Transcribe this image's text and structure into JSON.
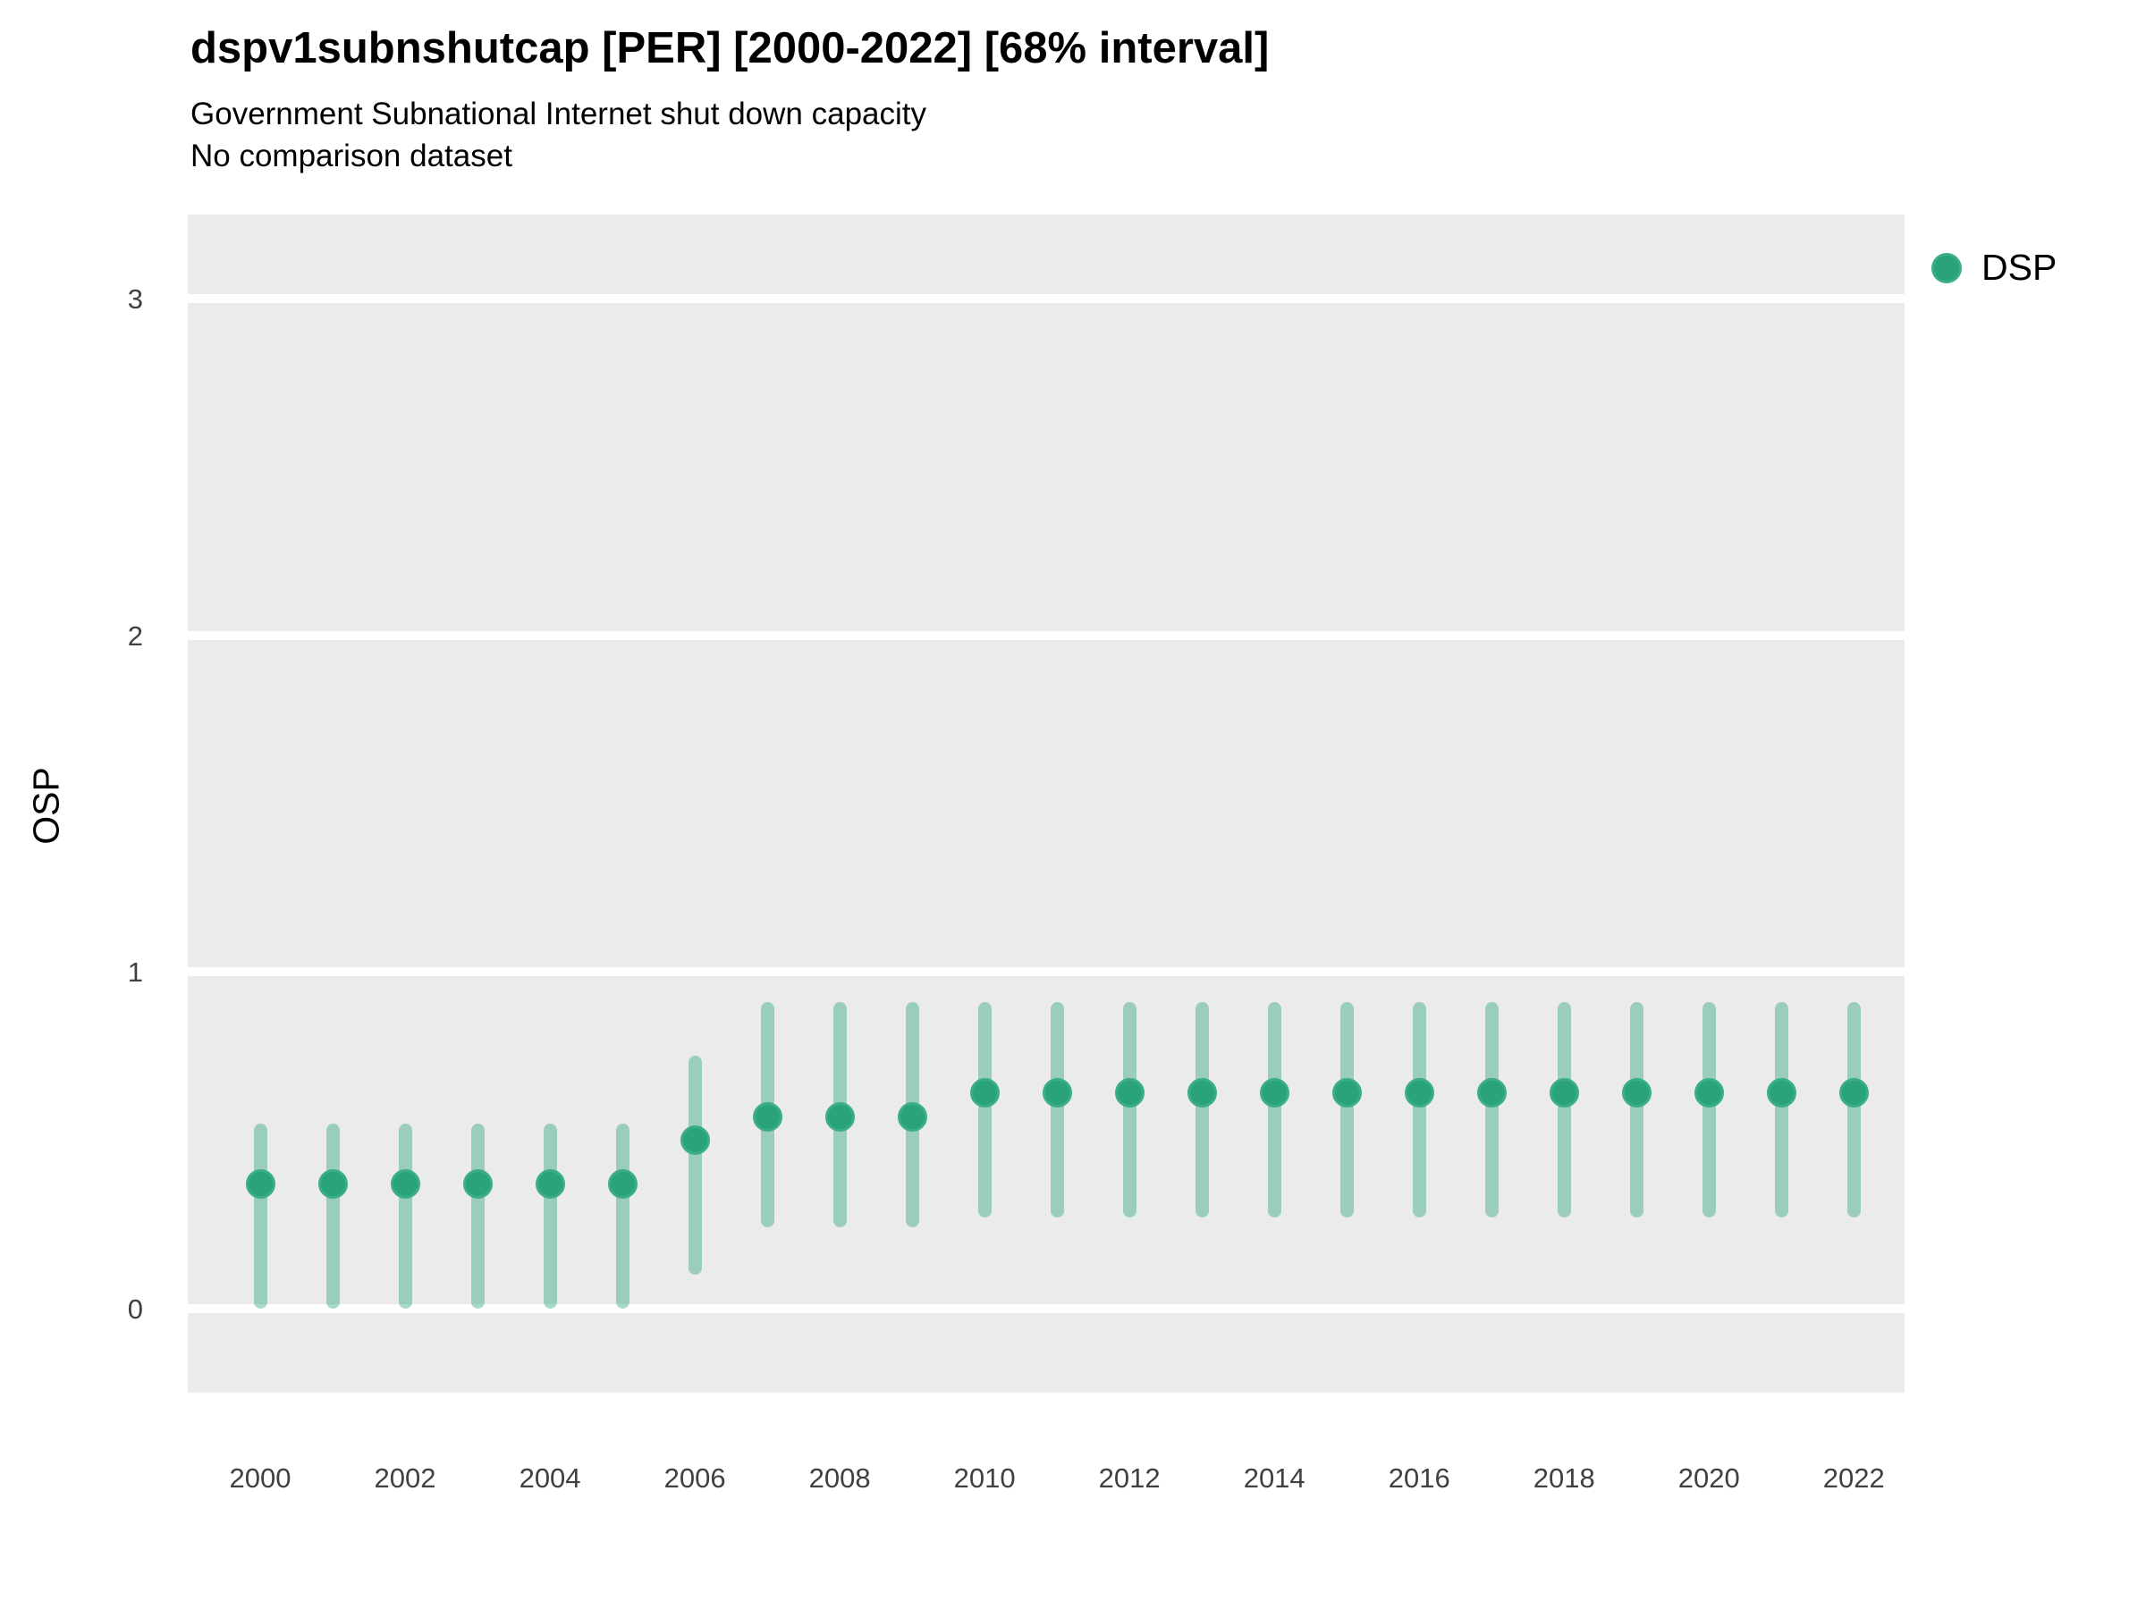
{
  "header": {
    "title": "dspv1subnshutcap [PER] [2000-2022] [68% interval]",
    "subtitle": "Government Subnational Internet shut down capacity",
    "subtitle2": "No comparison dataset"
  },
  "legend": {
    "label": "DSP",
    "position": "right"
  },
  "colors": {
    "point": "#29a377",
    "point_ring": "#3cae87",
    "interval": "rgba(42,166,121,0.42)",
    "panel_background": "#ebebeb",
    "gridline": "#ffffff",
    "tick_label": "#404040"
  },
  "chart_data": {
    "type": "scatter",
    "title": "dspv1subnshutcap [PER] [2000-2022] [68% interval]",
    "subtitle": "Government Subnational Internet shut down capacity",
    "note": "No comparison dataset",
    "xlabel": "",
    "ylabel": "OSP",
    "interval_level": "68%",
    "legend_entries": [
      "DSP"
    ],
    "legend_position": "right",
    "grid": "horizontal-major-only",
    "x": [
      2000,
      2001,
      2002,
      2003,
      2004,
      2005,
      2006,
      2007,
      2008,
      2009,
      2010,
      2011,
      2012,
      2013,
      2014,
      2015,
      2016,
      2017,
      2018,
      2019,
      2020,
      2021,
      2022
    ],
    "series": [
      {
        "name": "DSP",
        "values": [
          0.37,
          0.37,
          0.37,
          0.37,
          0.37,
          0.37,
          0.5,
          0.57,
          0.57,
          0.57,
          0.64,
          0.64,
          0.64,
          0.64,
          0.64,
          0.64,
          0.64,
          0.64,
          0.64,
          0.64,
          0.64,
          0.64,
          0.64
        ],
        "interval_low": [
          0.0,
          0.0,
          0.0,
          0.0,
          0.0,
          0.0,
          0.1,
          0.24,
          0.24,
          0.24,
          0.27,
          0.27,
          0.27,
          0.27,
          0.27,
          0.27,
          0.27,
          0.27,
          0.27,
          0.27,
          0.27,
          0.27,
          0.27
        ],
        "interval_high": [
          0.55,
          0.55,
          0.55,
          0.55,
          0.55,
          0.55,
          0.75,
          0.91,
          0.91,
          0.91,
          0.91,
          0.91,
          0.91,
          0.91,
          0.91,
          0.91,
          0.91,
          0.91,
          0.91,
          0.91,
          0.91,
          0.91,
          0.91
        ]
      }
    ],
    "xlim": [
      1999.0,
      2022.7
    ],
    "ylim": [
      -0.25,
      3.25
    ],
    "y_ticks": [
      0,
      1,
      2,
      3
    ],
    "x_ticks": [
      2000,
      2002,
      2004,
      2006,
      2008,
      2010,
      2012,
      2014,
      2016,
      2018,
      2020,
      2022
    ]
  }
}
